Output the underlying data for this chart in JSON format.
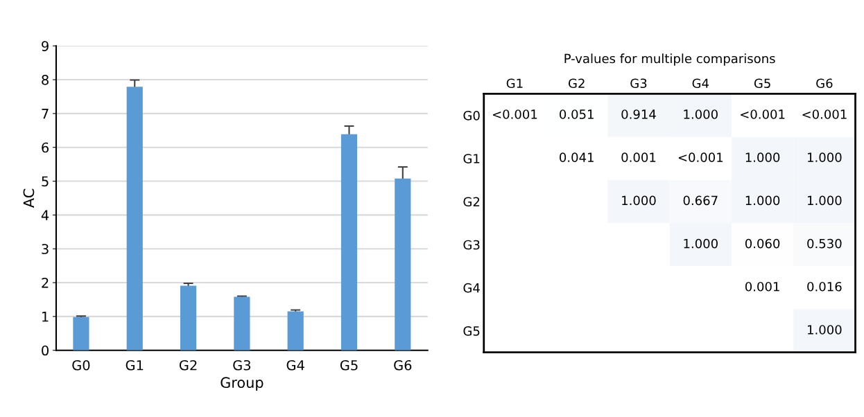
{
  "chart_data": [
    {
      "type": "bar",
      "xlabel": "Group",
      "ylabel": "AC",
      "categories": [
        "G0",
        "G1",
        "G2",
        "G3",
        "G4",
        "G5",
        "G6"
      ],
      "values": [
        0.98,
        7.79,
        1.91,
        1.58,
        1.15,
        6.39,
        5.08
      ],
      "color": "#5b9bd5",
      "errors": [
        0.03,
        0.2,
        0.07,
        0.02,
        0.04,
        0.24,
        0.34
      ],
      "ylim": [
        0,
        9
      ],
      "yticks": [
        0,
        1,
        2,
        3,
        4,
        5,
        6,
        7,
        8,
        9
      ],
      "grid": "y"
    },
    {
      "type": "heatmap",
      "title": "P-values for multiple comparisons",
      "categories": [
        "G1",
        "G2",
        "G3",
        "G4",
        "G5",
        "G6"
      ],
      "y_categories": [
        "G0",
        "G1",
        "G2",
        "G3",
        "G4",
        "G5"
      ],
      "cells": [
        [
          null,
          0.051,
          0.914,
          1.0,
          null,
          null
        ],
        [
          null,
          0.041,
          0.001,
          null,
          1.0,
          1.0
        ],
        [
          null,
          null,
          1.0,
          0.667,
          1.0,
          1.0
        ],
        [
          null,
          null,
          null,
          1.0,
          0.06,
          0.53
        ],
        [
          null,
          null,
          null,
          null,
          0.001,
          0.016
        ],
        [
          null,
          null,
          null,
          null,
          null,
          1.0
        ]
      ],
      "cell_labels": [
        [
          "<0.001",
          "0.051",
          "0.914",
          "1.000",
          "<0.001",
          "<0.001"
        ],
        [
          null,
          "0.041",
          "0.001",
          "<0.001",
          "1.000",
          "1.000"
        ],
        [
          null,
          null,
          "1.000",
          "0.667",
          "1.000",
          "1.000"
        ],
        [
          null,
          null,
          null,
          "1.000",
          "0.060",
          "0.530"
        ],
        [
          null,
          null,
          null,
          null,
          "0.001",
          "0.016"
        ],
        [
          null,
          null,
          null,
          null,
          null,
          "1.000"
        ]
      ]
    }
  ]
}
